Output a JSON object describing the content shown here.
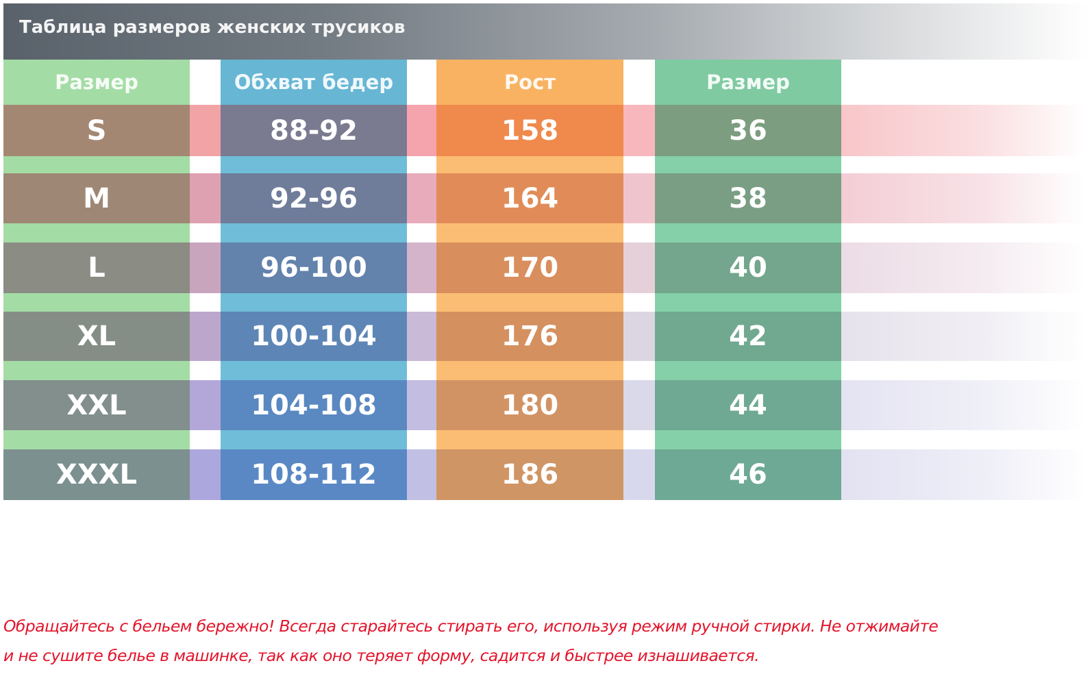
{
  "title": "Таблица размеров женских трусиков",
  "headers": [
    "Размер",
    "Обхват бедер",
    "Рост",
    "Размер"
  ],
  "rows": [
    {
      "size": "S",
      "hips": "88-92",
      "height": "158",
      "ru_size": "36"
    },
    {
      "size": "M",
      "hips": "92-96",
      "height": "164",
      "ru_size": "38"
    },
    {
      "size": "L",
      "hips": "96-100",
      "height": "170",
      "ru_size": "40"
    },
    {
      "size": "XL",
      "hips": "100-104",
      "height": "176",
      "ru_size": "42"
    },
    {
      "size": "XXL",
      "hips": "104-108",
      "height": "180",
      "ru_size": "44"
    },
    {
      "size": "XXXL",
      "hips": "108-112",
      "height": "186",
      "ru_size": "46"
    }
  ],
  "note": {
    "line1": "Обращайтесь с бельем бережно! Всегда старайтесь стирать его, используя режим ручной стирки. Не отжимайте",
    "line2": "и не сушите белье в машинке, так как оно теряет форму, садится и быстрее изнашивается."
  },
  "colors": {
    "title_bar": "#59616a",
    "col_size_header": "#a4dca5",
    "col_hips_header": "#66b6d4",
    "col_height_header": "#f8b261",
    "col_ru_size_header": "#7fcaa1",
    "note_text": "#e3142b"
  }
}
